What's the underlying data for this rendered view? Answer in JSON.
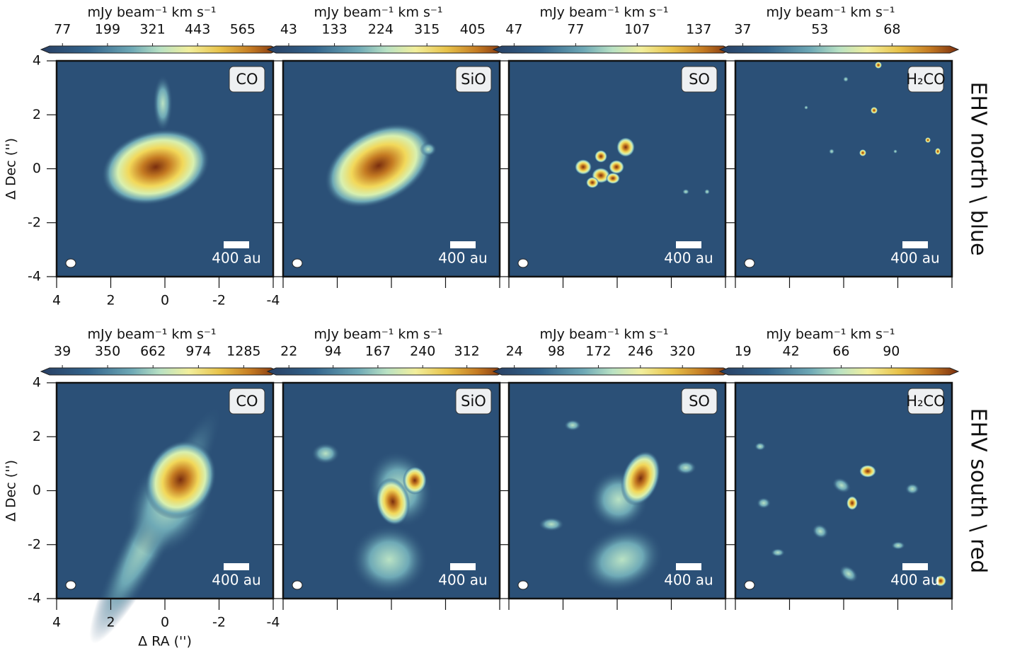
{
  "chart_data": {
    "type": "heatmap",
    "xlabel": "Δ RA ('')",
    "ylabel": "Δ Dec ('')",
    "xlim": [
      4,
      -4
    ],
    "ylim": [
      -4,
      4
    ],
    "xticks": [
      4,
      2,
      0,
      -2,
      -4
    ],
    "yticks": [
      -4,
      -2,
      0,
      2,
      4
    ],
    "colorbar_label": "mJy beam⁻¹ km s⁻¹",
    "scale_bar": "400 au",
    "rows": [
      {
        "label": "EHV north \\ blue",
        "panels": [
          {
            "molecule": "CO",
            "clim": [
              42,
              642
            ],
            "cticks": [
              77,
              199,
              321,
              443,
              565
            ]
          },
          {
            "molecule": "SiO",
            "clim": [
              18,
              454
            ],
            "cticks": [
              43,
              133,
              224,
              315,
              405
            ]
          },
          {
            "molecule": "SO",
            "clim": [
              41,
              149
            ],
            "cticks": [
              47,
              77,
              107,
              137
            ]
          },
          {
            "molecule": "H₂CO",
            "clim": [
              34,
              80
            ],
            "cticks": [
              37,
              53,
              68
            ]
          }
        ]
      },
      {
        "label": "EHV south \\ red",
        "panels": [
          {
            "molecule": "CO",
            "clim": [
              -49,
              1473
            ],
            "cticks": [
              39,
              350,
              662,
              974,
              1285
            ]
          },
          {
            "molecule": "SiO",
            "clim": [
              1,
              362
            ],
            "cticks": [
              22,
              94,
              167,
              240,
              312
            ]
          },
          {
            "molecule": "SO",
            "clim": [
              2,
              392
            ],
            "cticks": [
              24,
              98,
              172,
              246,
              320
            ]
          },
          {
            "molecule": "H₂CO",
            "clim": [
              12,
              118
            ],
            "cticks": [
              19,
              42,
              66,
              90
            ]
          }
        ]
      }
    ]
  }
}
